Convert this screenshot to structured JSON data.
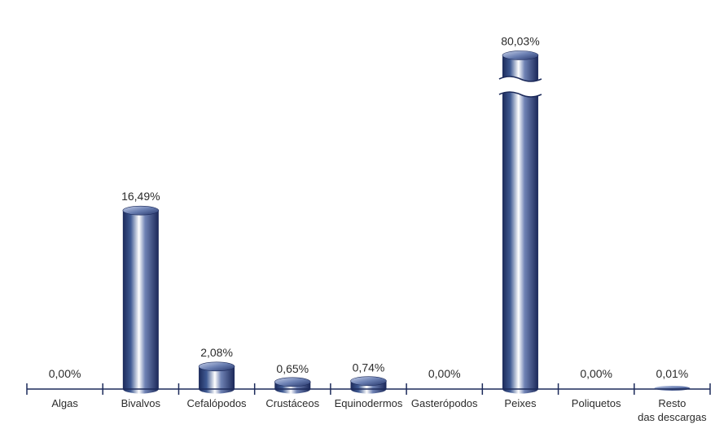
{
  "chart_data": {
    "type": "bar",
    "categories": [
      "Algas",
      "Bivalvos",
      "Cefalópodos",
      "Crustáceos",
      "Equinodermos",
      "Gasterópodos",
      "Peixes",
      "Poliquetos",
      "Resto das descargas"
    ],
    "values": [
      0.0,
      16.49,
      2.08,
      0.65,
      0.74,
      0.0,
      80.03,
      0.0,
      0.01
    ],
    "value_labels": [
      "0,00%",
      "16,49%",
      "2,08%",
      "0,65%",
      "0,74%",
      "0,00%",
      "80,03%",
      "0,00%",
      "0,01%"
    ],
    "title": "",
    "xlabel": "",
    "ylabel": "",
    "ylim": [
      0,
      20
    ],
    "broken_axis": true,
    "broken_series_index": 6,
    "bar_shape": "cylinder",
    "legend": "none",
    "grid": false,
    "colors": {
      "bar_dark": "#1c2a5a",
      "bar_light": "#ffffff",
      "axis": "#1c2a5a",
      "text": "#2b2b2b"
    }
  }
}
